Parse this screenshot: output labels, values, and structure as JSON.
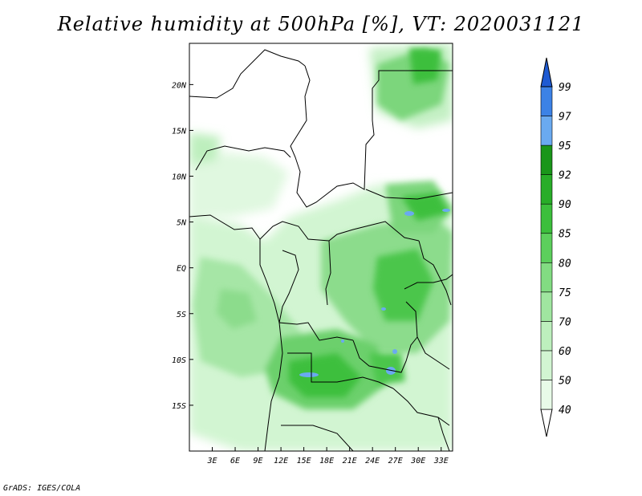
{
  "title": "Relative humidity at 500hPa [%], VT: 2020031121",
  "credit": "GrADS: IGES/COLA",
  "map": {
    "lon_range": [
      0,
      34.5
    ],
    "lat_range": [
      -20,
      24.5
    ],
    "lon_ticks": [
      {
        "value": 3,
        "label": "3E"
      },
      {
        "value": 6,
        "label": "6E"
      },
      {
        "value": 9,
        "label": "9E"
      },
      {
        "value": 12,
        "label": "12E"
      },
      {
        "value": 15,
        "label": "15E"
      },
      {
        "value": 18,
        "label": "18E"
      },
      {
        "value": 21,
        "label": "21E"
      },
      {
        "value": 24,
        "label": "24E"
      },
      {
        "value": 27,
        "label": "27E"
      },
      {
        "value": 30,
        "label": "30E"
      },
      {
        "value": 33,
        "label": "33E"
      }
    ],
    "lat_ticks": [
      {
        "value": 20,
        "label": "20N"
      },
      {
        "value": 15,
        "label": "15N"
      },
      {
        "value": 10,
        "label": "10N"
      },
      {
        "value": 5,
        "label": "5N"
      },
      {
        "value": 0,
        "label": "EQ"
      },
      {
        "value": -5,
        "label": "5S"
      },
      {
        "value": -10,
        "label": "10S"
      },
      {
        "value": -15,
        "label": "15S"
      }
    ]
  },
  "colorbar": {
    "levels": [
      "40",
      "50",
      "60",
      "70",
      "75",
      "80",
      "85",
      "90",
      "92",
      "95",
      "97",
      "99"
    ],
    "colors": [
      "#ffffff",
      "#e8fbe8",
      "#d2f5d2",
      "#bdefbd",
      "#a0e6a0",
      "#82dc82",
      "#5ccf5c",
      "#3cbf3c",
      "#28ad28",
      "#1a961a",
      "#6aaaf0",
      "#3c82e6",
      "#1e5ad2"
    ]
  }
}
